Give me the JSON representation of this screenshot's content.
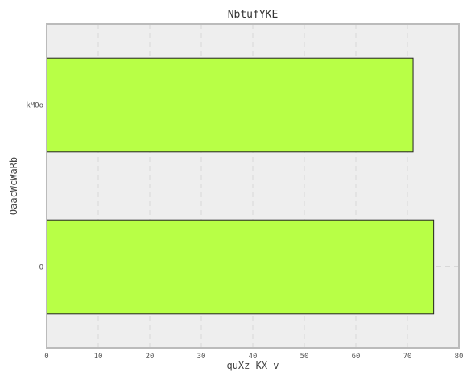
{
  "chart_data": {
    "type": "bar",
    "orientation": "horizontal",
    "title": "NbtufYKE",
    "xlabel": "quXz KX  v",
    "ylabel": "OaacWcWaRb",
    "categories": [
      "O",
      "kMOo"
    ],
    "values": [
      75.1,
      71.1
    ],
    "xlim": [
      0,
      80
    ],
    "xticks": [
      "0",
      "10",
      "20",
      "30",
      "40",
      "50",
      "60",
      "70",
      "80"
    ],
    "grid": true,
    "colors": {
      "bar": "#b8ff46",
      "plot_background": "#eeeeee",
      "frame": "#bbbbbb"
    }
  }
}
